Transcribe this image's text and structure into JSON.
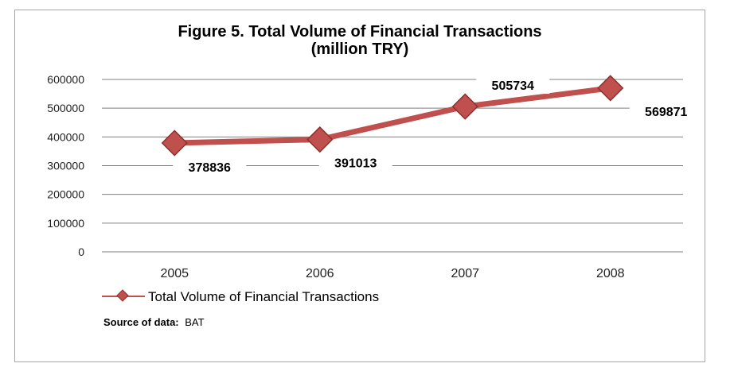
{
  "chart_data": {
    "type": "line",
    "title": "Figure 5. Total Volume of Financial Transactions",
    "subtitle": "(million TRY)",
    "categories": [
      "2005",
      "2006",
      "2007",
      "2008"
    ],
    "series": [
      {
        "name": "Total Volume of Financial Transactions",
        "values": [
          378836,
          391013,
          505734,
          569871
        ],
        "color": "#c0504d"
      }
    ],
    "data_labels": [
      "378836",
      "391013",
      "505734",
      "569871"
    ],
    "yticks": [
      "0",
      "100000",
      "200000",
      "300000",
      "400000",
      "500000",
      "600000"
    ],
    "ylim": [
      0,
      600000
    ],
    "grid": true,
    "legend_position": "bottom-left",
    "xlabel": "",
    "ylabel": ""
  },
  "source": {
    "label": "Source of data:",
    "value": "BAT"
  }
}
